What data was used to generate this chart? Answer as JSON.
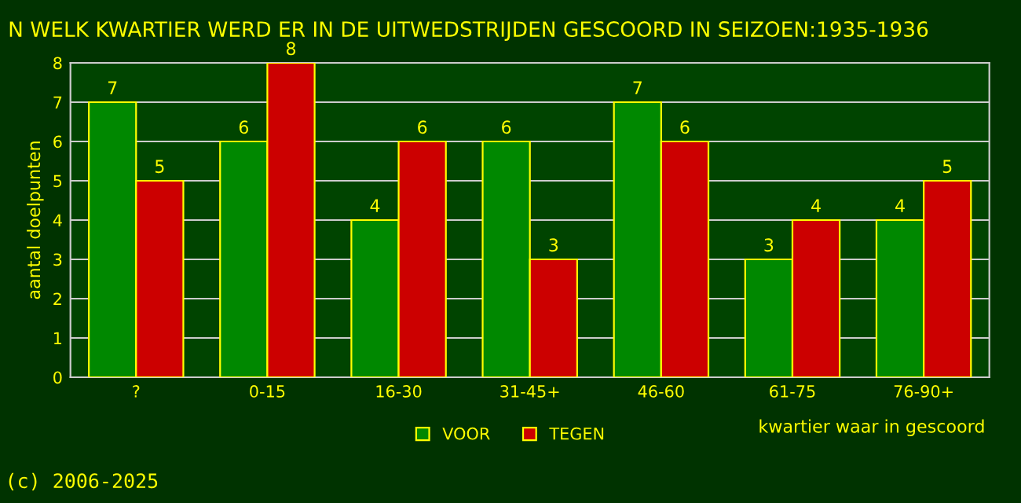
{
  "chart_data": {
    "type": "bar",
    "title": "N WELK KWARTIER WERD ER IN DE UITWEDSTRIJDEN GESCOORD IN SEIZOEN:1935-1936",
    "xlabel": "kwartier waar in gescoord",
    "ylabel": "aantal doelpunten",
    "categories": [
      "?",
      "0-15",
      "16-30",
      "31-45+",
      "46-60",
      "61-75",
      "76-90+"
    ],
    "series": [
      {
        "name": "VOOR",
        "color": "#008800",
        "values": [
          7,
          6,
          4,
          6,
          7,
          3,
          4
        ]
      },
      {
        "name": "TEGEN",
        "color": "#cc0000",
        "values": [
          5,
          8,
          6,
          3,
          6,
          4,
          5
        ]
      }
    ],
    "ylim": [
      0,
      8
    ],
    "yticks": [
      0,
      1,
      2,
      3,
      4,
      5,
      6,
      7,
      8
    ],
    "grid": "y",
    "legend": "bottom",
    "data_labels": true,
    "annotations": [
      "(c) 2006-2025"
    ]
  }
}
